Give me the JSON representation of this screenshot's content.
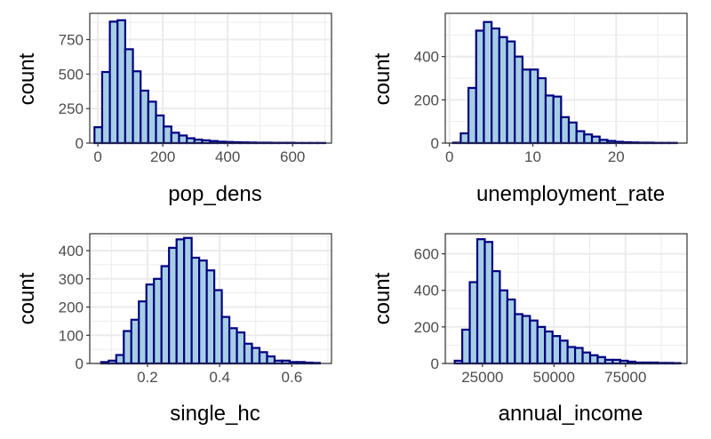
{
  "chart_data": [
    {
      "type": "bar",
      "panel": "top-left",
      "xlabel": "pop_dens",
      "ylabel": "count",
      "xlim": [
        -25,
        720
      ],
      "ylim": [
        0,
        940
      ],
      "xticks": [
        0,
        200,
        400,
        600
      ],
      "yticks": [
        0,
        250,
        500,
        750
      ],
      "bin_start": -10.5,
      "bin_width": 23.7,
      "values": [
        115,
        515,
        880,
        890,
        680,
        520,
        380,
        300,
        200,
        120,
        75,
        55,
        35,
        25,
        20,
        15,
        10,
        8,
        6,
        5,
        4,
        3,
        3,
        2,
        2,
        2,
        1,
        1,
        1,
        1
      ],
      "grid": true,
      "colors": {
        "fill": "#a6cee3",
        "stroke": "#000080"
      }
    },
    {
      "type": "bar",
      "panel": "top-right",
      "xlabel": "unemployment_rate",
      "ylabel": "count",
      "xlim": [
        -0.5,
        28.5
      ],
      "ylim": [
        0,
        600
      ],
      "xticks": [
        0,
        10,
        20
      ],
      "yticks": [
        0,
        200,
        400
      ],
      "bin_start": 0.43,
      "bin_width": 0.926,
      "values": [
        2,
        45,
        255,
        520,
        560,
        530,
        490,
        470,
        400,
        340,
        340,
        300,
        220,
        215,
        120,
        95,
        55,
        40,
        30,
        15,
        10,
        6,
        4,
        3,
        2,
        2,
        1,
        1,
        1
      ],
      "grid": true,
      "colors": {
        "fill": "#a6cee3",
        "stroke": "#000080"
      }
    },
    {
      "type": "bar",
      "panel": "bottom-left",
      "xlabel": "single_hc",
      "ylabel": "count",
      "xlim": [
        0.04,
        0.71
      ],
      "ylim": [
        0,
        460
      ],
      "xticks": [
        0.2,
        0.4,
        0.6
      ],
      "yticks": [
        0,
        100,
        200,
        300,
        400
      ],
      "bin_start": 0.0716,
      "bin_width": 0.0209,
      "values": [
        5,
        10,
        30,
        115,
        155,
        220,
        280,
        300,
        345,
        410,
        440,
        445,
        375,
        365,
        330,
        260,
        165,
        125,
        110,
        70,
        55,
        40,
        25,
        10,
        10,
        5,
        5,
        3,
        2
      ],
      "grid": true,
      "colors": {
        "fill": "#a6cee3",
        "stroke": "#000080"
      }
    },
    {
      "type": "bar",
      "panel": "bottom-right",
      "xlabel": "annual_income",
      "ylabel": "count",
      "xlim": [
        12000,
        96500
      ],
      "ylim": [
        0,
        710
      ],
      "xticks": [
        25000,
        50000,
        75000
      ],
      "yticks": [
        0,
        200,
        400,
        600
      ],
      "bin_start": 15300,
      "bin_width": 2630,
      "values": [
        15,
        185,
        445,
        680,
        665,
        505,
        400,
        350,
        270,
        260,
        235,
        200,
        175,
        150,
        125,
        90,
        85,
        60,
        45,
        35,
        20,
        20,
        15,
        10,
        5,
        5,
        5,
        3,
        3,
        2
      ],
      "grid": true,
      "colors": {
        "fill": "#a6cee3",
        "stroke": "#000080"
      }
    }
  ]
}
